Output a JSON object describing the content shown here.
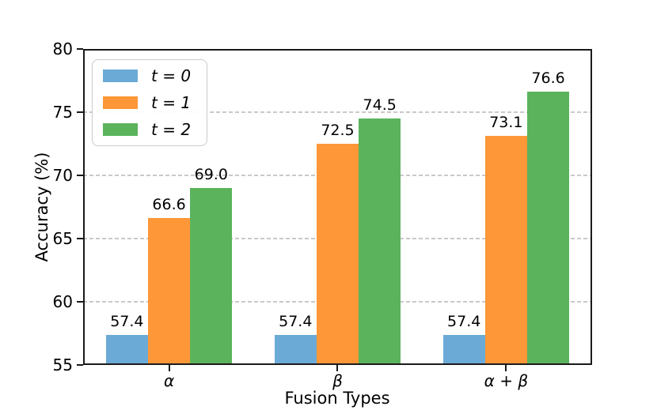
{
  "chart_data": {
    "type": "bar",
    "title": "",
    "xlabel": "Fusion Types",
    "ylabel": "Accuracy (%)",
    "categories": [
      "α",
      "β",
      "α + β"
    ],
    "series": [
      {
        "name": "t = 0",
        "color": "#6BAAD6",
        "values": [
          57.4,
          57.4,
          57.4
        ]
      },
      {
        "name": "t = 1",
        "color": "#FD9737",
        "values": [
          66.6,
          72.5,
          73.1
        ]
      },
      {
        "name": "t = 2",
        "color": "#5BB35C",
        "values": [
          69.0,
          74.5,
          76.6
        ]
      }
    ],
    "ylim": [
      55,
      80
    ],
    "yticks": [
      "55",
      "60",
      "65",
      "70",
      "75",
      "80"
    ],
    "gridlines": [
      60,
      65,
      70,
      75
    ],
    "grid_style": "dashed horizontal, behind bars",
    "bar_labels": true,
    "bar_label_format": "one decimal",
    "legend_position": "upper left"
  },
  "colors": {
    "spine": "#1a1a1a",
    "grid": "#c9c9c9",
    "text": "#000000",
    "legend_border": "#cbcbcb",
    "background": "#ffffff"
  }
}
